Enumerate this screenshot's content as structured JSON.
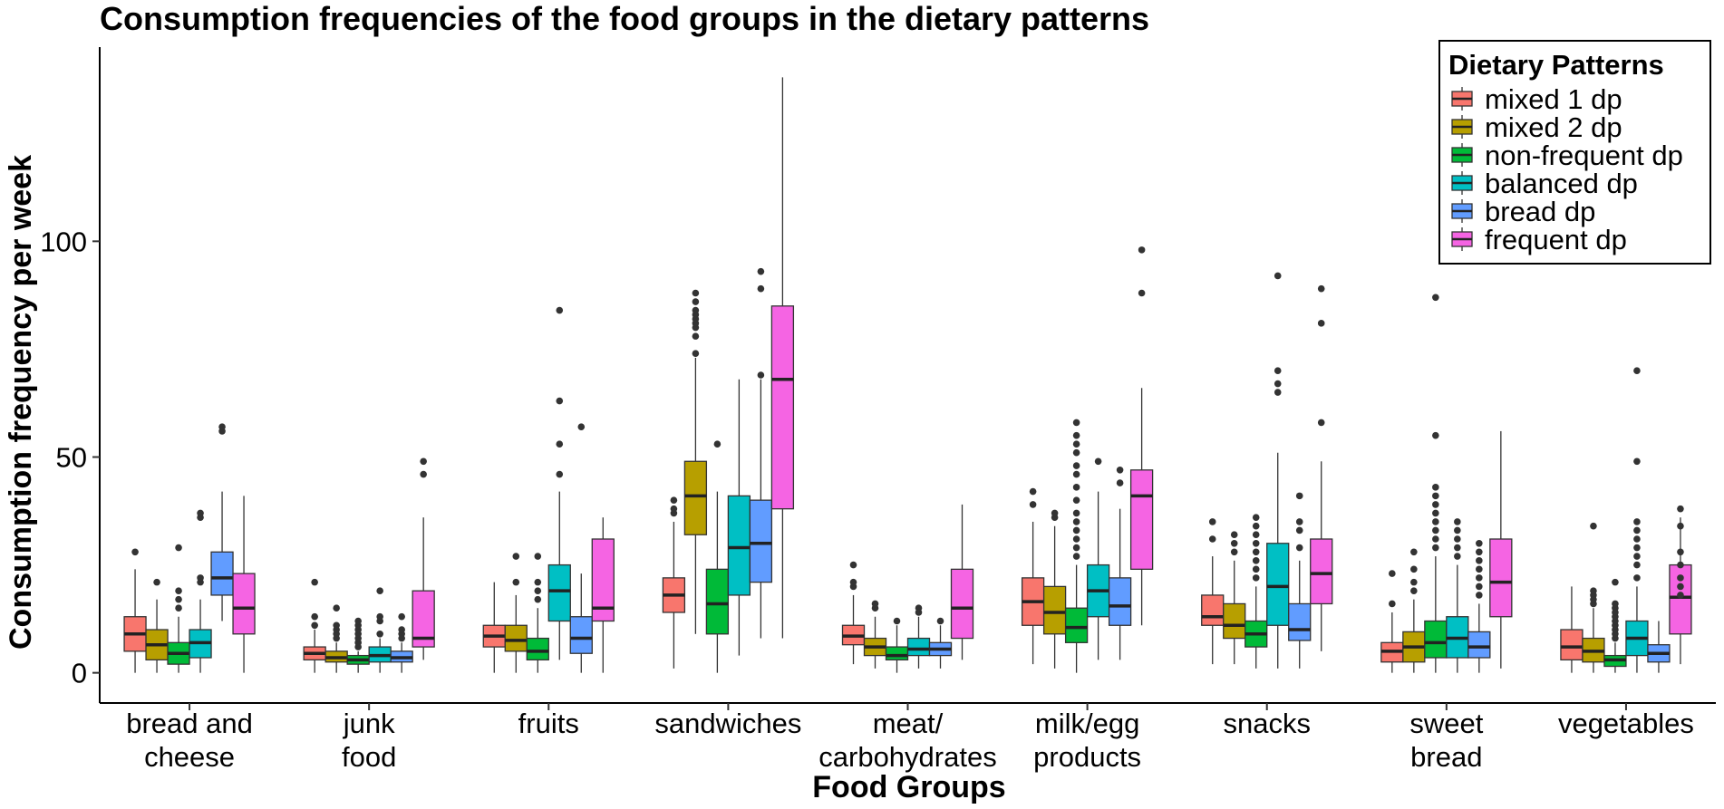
{
  "chart_data": {
    "type": "boxplot",
    "title": "Consumption frequencies of the food groups in the dietary patterns",
    "xlabel": "Food Groups",
    "ylabel": "Consumption frequency per week",
    "ylim": [
      -7,
      145
    ],
    "yticks": [
      0,
      50,
      100
    ],
    "grid": false,
    "legend": {
      "title": "Dietary Patterns",
      "position": "top-right",
      "entries": [
        {
          "name": "mixed 1 dp",
          "color": "#F8766D"
        },
        {
          "name": "mixed 2 dp",
          "color": "#B79F00"
        },
        {
          "name": "non-frequent dp",
          "color": "#00BA38"
        },
        {
          "name": "balanced dp",
          "color": "#00BFC4"
        },
        {
          "name": "bread dp",
          "color": "#619CFF"
        },
        {
          "name": "frequent dp",
          "color": "#F564E3"
        }
      ]
    },
    "categories": [
      {
        "label": [
          "bread and",
          "cheese"
        ],
        "boxes": [
          {
            "q1": 5,
            "med": 9,
            "q3": 13,
            "lo": 0,
            "hi": 24,
            "out": [
              28
            ]
          },
          {
            "q1": 3,
            "med": 6.5,
            "q3": 10,
            "lo": 0,
            "hi": 17,
            "out": [
              21
            ]
          },
          {
            "q1": 2,
            "med": 4.5,
            "q3": 7,
            "lo": 0,
            "hi": 13,
            "out": [
              15,
              17,
              19,
              29
            ]
          },
          {
            "q1": 3.5,
            "med": 7,
            "q3": 10,
            "lo": 0,
            "hi": 17,
            "out": [
              21,
              22,
              36,
              37
            ]
          },
          {
            "q1": 18,
            "med": 22,
            "q3": 28,
            "lo": 12,
            "hi": 42,
            "out": [
              56,
              57
            ]
          },
          {
            "q1": 9,
            "med": 15,
            "q3": 23,
            "lo": 0,
            "hi": 41,
            "out": []
          }
        ]
      },
      {
        "label": [
          "junk",
          "food"
        ],
        "boxes": [
          {
            "q1": 3,
            "med": 4.5,
            "q3": 6,
            "lo": 0,
            "hi": 10,
            "out": [
              11,
              13,
              21
            ]
          },
          {
            "q1": 2.5,
            "med": 3.5,
            "q3": 5,
            "lo": 0,
            "hi": 7,
            "out": [
              8,
              9,
              10,
              11,
              15
            ]
          },
          {
            "q1": 2,
            "med": 3,
            "q3": 4,
            "lo": 0,
            "hi": 5,
            "out": [
              6,
              7,
              8,
              9,
              10,
              11,
              12
            ]
          },
          {
            "q1": 2.5,
            "med": 4,
            "q3": 6,
            "lo": 0,
            "hi": 8,
            "out": [
              9,
              12,
              13,
              19
            ]
          },
          {
            "q1": 2.5,
            "med": 3.5,
            "q3": 5,
            "lo": 0,
            "hi": 7,
            "out": [
              8,
              9,
              10,
              13
            ]
          },
          {
            "q1": 6,
            "med": 8,
            "q3": 19,
            "lo": 3,
            "hi": 36,
            "out": [
              46,
              49
            ]
          }
        ]
      },
      {
        "label": [
          "fruits"
        ],
        "boxes": [
          {
            "q1": 6,
            "med": 8.5,
            "q3": 11,
            "lo": 0,
            "hi": 21,
            "out": []
          },
          {
            "q1": 5,
            "med": 7.5,
            "q3": 11,
            "lo": 0,
            "hi": 18,
            "out": [
              21,
              27
            ]
          },
          {
            "q1": 3,
            "med": 5,
            "q3": 8,
            "lo": 0,
            "hi": 15,
            "out": [
              17,
              19,
              21,
              27
            ]
          },
          {
            "q1": 12,
            "med": 19,
            "q3": 25,
            "lo": 3,
            "hi": 42,
            "out": [
              46,
              53,
              63,
              84
            ]
          },
          {
            "q1": 4.5,
            "med": 8,
            "q3": 13,
            "lo": 0,
            "hi": 23,
            "out": [
              57
            ]
          },
          {
            "q1": 12,
            "med": 15,
            "q3": 31,
            "lo": 0,
            "hi": 36,
            "out": []
          }
        ]
      },
      {
        "label": [
          "sandwiches"
        ],
        "boxes": [
          {
            "q1": 14,
            "med": 18,
            "q3": 22,
            "lo": 1,
            "hi": 35,
            "out": [
              37,
              38,
              40
            ]
          },
          {
            "q1": 32,
            "med": 41,
            "q3": 49,
            "lo": 9,
            "hi": 73,
            "out": [
              74,
              78,
              80,
              81,
              82,
              83,
              84,
              86,
              88
            ]
          },
          {
            "q1": 9,
            "med": 16,
            "q3": 24,
            "lo": 0,
            "hi": 42,
            "out": [
              53
            ]
          },
          {
            "q1": 18,
            "med": 29,
            "q3": 41,
            "lo": 4,
            "hi": 68,
            "out": []
          },
          {
            "q1": 21,
            "med": 30,
            "q3": 40,
            "lo": 8,
            "hi": 68,
            "out": [
              69,
              89,
              93
            ]
          },
          {
            "q1": 38,
            "med": 68,
            "q3": 85,
            "lo": 8,
            "hi": 138,
            "out": []
          }
        ]
      },
      {
        "label": [
          "meat/",
          "carbohydrates"
        ],
        "boxes": [
          {
            "q1": 6.5,
            "med": 8.5,
            "q3": 11,
            "lo": 2,
            "hi": 18,
            "out": [
              20,
              21,
              25
            ]
          },
          {
            "q1": 4,
            "med": 6,
            "q3": 8,
            "lo": 1,
            "hi": 13,
            "out": [
              15,
              16
            ]
          },
          {
            "q1": 3,
            "med": 4,
            "q3": 6,
            "lo": 0,
            "hi": 11,
            "out": [
              12
            ]
          },
          {
            "q1": 4,
            "med": 5.5,
            "q3": 8,
            "lo": 1,
            "hi": 13,
            "out": [
              14,
              15
            ]
          },
          {
            "q1": 4,
            "med": 5.5,
            "q3": 7,
            "lo": 1,
            "hi": 11,
            "out": [
              12
            ]
          },
          {
            "q1": 8,
            "med": 15,
            "q3": 24,
            "lo": 3,
            "hi": 39,
            "out": []
          }
        ]
      },
      {
        "label": [
          "milk/egg",
          "products"
        ],
        "boxes": [
          {
            "q1": 11,
            "med": 16.5,
            "q3": 22,
            "lo": 2,
            "hi": 35,
            "out": [
              39,
              42
            ]
          },
          {
            "q1": 9,
            "med": 14,
            "q3": 20,
            "lo": 1,
            "hi": 34,
            "out": [
              36,
              37
            ]
          },
          {
            "q1": 7,
            "med": 10.5,
            "q3": 15,
            "lo": 0,
            "hi": 25,
            "out": [
              27,
              29,
              31,
              33,
              35,
              37,
              40,
              43,
              46,
              48,
              51,
              53,
              55,
              58
            ]
          },
          {
            "q1": 13,
            "med": 19,
            "q3": 25,
            "lo": 3,
            "hi": 42,
            "out": [
              49
            ]
          },
          {
            "q1": 11,
            "med": 15.5,
            "q3": 22,
            "lo": 3,
            "hi": 38,
            "out": [
              44,
              47
            ]
          },
          {
            "q1": 24,
            "med": 41,
            "q3": 47,
            "lo": 11,
            "hi": 66,
            "out": [
              88,
              98
            ]
          }
        ]
      },
      {
        "label": [
          "snacks"
        ],
        "boxes": [
          {
            "q1": 11,
            "med": 13,
            "q3": 18,
            "lo": 2,
            "hi": 27,
            "out": [
              31,
              35
            ]
          },
          {
            "q1": 8,
            "med": 11,
            "q3": 16,
            "lo": 2,
            "hi": 26,
            "out": [
              28,
              30,
              32
            ]
          },
          {
            "q1": 6,
            "med": 9,
            "q3": 12,
            "lo": 1,
            "hi": 20,
            "out": [
              22,
              24,
              26,
              28,
              30,
              32,
              34,
              36
            ]
          },
          {
            "q1": 11,
            "med": 20,
            "q3": 30,
            "lo": 1,
            "hi": 51,
            "out": [
              65,
              67,
              70,
              92
            ]
          },
          {
            "q1": 7.5,
            "med": 10,
            "q3": 16,
            "lo": 1,
            "hi": 26,
            "out": [
              29,
              33,
              35,
              41
            ]
          },
          {
            "q1": 16,
            "med": 23,
            "q3": 31,
            "lo": 5,
            "hi": 49,
            "out": [
              58,
              81,
              89
            ]
          }
        ]
      },
      {
        "label": [
          "sweet",
          "bread"
        ],
        "boxes": [
          {
            "q1": 2.5,
            "med": 5,
            "q3": 7,
            "lo": 0,
            "hi": 14,
            "out": [
              16,
              23
            ]
          },
          {
            "q1": 2.5,
            "med": 6,
            "q3": 9.5,
            "lo": 0,
            "hi": 17,
            "out": [
              19,
              21,
              24,
              28
            ]
          },
          {
            "q1": 3.5,
            "med": 7,
            "q3": 12,
            "lo": 0,
            "hi": 27,
            "out": [
              29,
              31,
              33,
              35,
              37,
              39,
              41,
              43,
              55,
              87
            ]
          },
          {
            "q1": 3.5,
            "med": 8,
            "q3": 13,
            "lo": 0,
            "hi": 25,
            "out": [
              27,
              29,
              31,
              33,
              35
            ]
          },
          {
            "q1": 3.5,
            "med": 6,
            "q3": 9.5,
            "lo": 0,
            "hi": 16,
            "out": [
              18,
              20,
              22,
              24,
              26,
              28,
              30
            ]
          },
          {
            "q1": 13,
            "med": 21,
            "q3": 31,
            "lo": 1,
            "hi": 56,
            "out": []
          }
        ]
      },
      {
        "label": [
          "vegetables"
        ],
        "boxes": [
          {
            "q1": 3,
            "med": 6,
            "q3": 10,
            "lo": 0,
            "hi": 20,
            "out": []
          },
          {
            "q1": 2.5,
            "med": 5,
            "q3": 8,
            "lo": 0,
            "hi": 15,
            "out": [
              16,
              17,
              18,
              19,
              34
            ]
          },
          {
            "q1": 1.5,
            "med": 3,
            "q3": 4,
            "lo": 0,
            "hi": 7,
            "out": [
              8,
              9,
              10,
              11,
              12,
              13,
              14,
              15,
              16,
              21
            ]
          },
          {
            "q1": 4,
            "med": 8,
            "q3": 12,
            "lo": 0,
            "hi": 20,
            "out": [
              22,
              25,
              27,
              29,
              31,
              33,
              35,
              49,
              70
            ]
          },
          {
            "q1": 2.5,
            "med": 4.5,
            "q3": 6.5,
            "lo": 0,
            "hi": 12,
            "out": []
          },
          {
            "q1": 9,
            "med": 17.5,
            "q3": 25,
            "lo": 2,
            "hi": 36,
            "out": [
              18,
              20,
              22,
              25,
              28,
              34,
              38
            ]
          }
        ]
      }
    ]
  }
}
